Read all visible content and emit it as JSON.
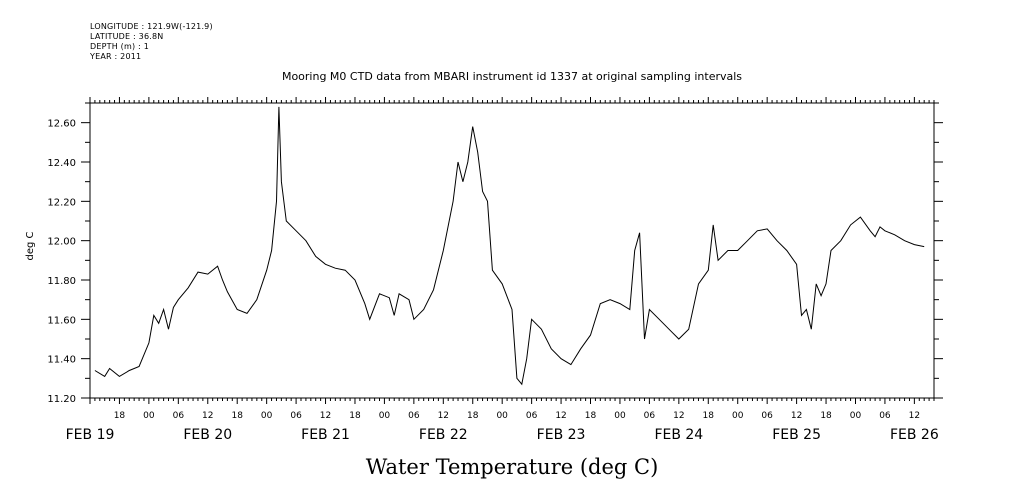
{
  "metadata": {
    "longitude": "LONGITUDE : 121.9W(-121.9)",
    "latitude": "LATITUDE : 36.8N",
    "depth": "DEPTH (m) : 1",
    "year": "YEAR : 2011"
  },
  "chart_data": {
    "type": "line",
    "title": "Mooring M0 CTD data from MBARI instrument id 1337 at original sampling intervals",
    "xlabel": "Water Temperature (deg C)",
    "ylabel": "deg C",
    "ylim": [
      11.2,
      12.7
    ],
    "xlim": [
      "2011-02-19T12:00",
      "2011-02-26T16:00"
    ],
    "y_ticks": [
      "11.20",
      "11.40",
      "11.60",
      "11.80",
      "12.00",
      "12.20",
      "12.40",
      "12.60"
    ],
    "hour_ticks": [
      {
        "t": "2011-02-19T18:00",
        "label": "18"
      },
      {
        "t": "2011-02-20T00:00",
        "label": "00"
      },
      {
        "t": "2011-02-20T06:00",
        "label": "06"
      },
      {
        "t": "2011-02-20T12:00",
        "label": "12"
      },
      {
        "t": "2011-02-20T18:00",
        "label": "18"
      },
      {
        "t": "2011-02-21T00:00",
        "label": "00"
      },
      {
        "t": "2011-02-21T06:00",
        "label": "06"
      },
      {
        "t": "2011-02-21T12:00",
        "label": "12"
      },
      {
        "t": "2011-02-21T18:00",
        "label": "18"
      },
      {
        "t": "2011-02-22T00:00",
        "label": "00"
      },
      {
        "t": "2011-02-22T06:00",
        "label": "06"
      },
      {
        "t": "2011-02-22T12:00",
        "label": "12"
      },
      {
        "t": "2011-02-22T18:00",
        "label": "18"
      },
      {
        "t": "2011-02-23T00:00",
        "label": "00"
      },
      {
        "t": "2011-02-23T06:00",
        "label": "06"
      },
      {
        "t": "2011-02-23T12:00",
        "label": "12"
      },
      {
        "t": "2011-02-23T18:00",
        "label": "18"
      },
      {
        "t": "2011-02-24T00:00",
        "label": "00"
      },
      {
        "t": "2011-02-24T06:00",
        "label": "06"
      },
      {
        "t": "2011-02-24T12:00",
        "label": "12"
      },
      {
        "t": "2011-02-24T18:00",
        "label": "18"
      },
      {
        "t": "2011-02-25T00:00",
        "label": "00"
      },
      {
        "t": "2011-02-25T06:00",
        "label": "06"
      },
      {
        "t": "2011-02-25T12:00",
        "label": "12"
      },
      {
        "t": "2011-02-25T18:00",
        "label": "18"
      },
      {
        "t": "2011-02-26T00:00",
        "label": "00"
      },
      {
        "t": "2011-02-26T06:00",
        "label": "06"
      },
      {
        "t": "2011-02-26T12:00",
        "label": "12"
      }
    ],
    "date_labels": [
      {
        "t": "2011-02-19T12:00",
        "label": "FEB 19"
      },
      {
        "t": "2011-02-20T12:00",
        "label": "FEB 20"
      },
      {
        "t": "2011-02-21T12:00",
        "label": "FEB 21"
      },
      {
        "t": "2011-02-22T12:00",
        "label": "FEB 22"
      },
      {
        "t": "2011-02-23T12:00",
        "label": "FEB 23"
      },
      {
        "t": "2011-02-24T12:00",
        "label": "FEB 24"
      },
      {
        "t": "2011-02-25T12:00",
        "label": "FEB 25"
      },
      {
        "t": "2011-02-26T12:00",
        "label": "FEB 26"
      }
    ],
    "series": [
      {
        "points": [
          [
            "2011-02-19T13:00",
            11.34
          ],
          [
            "2011-02-19T15:00",
            11.31
          ],
          [
            "2011-02-19T16:00",
            11.35
          ],
          [
            "2011-02-19T18:00",
            11.31
          ],
          [
            "2011-02-19T20:00",
            11.34
          ],
          [
            "2011-02-19T22:00",
            11.36
          ],
          [
            "2011-02-20T00:00",
            11.48
          ],
          [
            "2011-02-20T01:00",
            11.62
          ],
          [
            "2011-02-20T02:00",
            11.58
          ],
          [
            "2011-02-20T03:00",
            11.65
          ],
          [
            "2011-02-20T04:00",
            11.55
          ],
          [
            "2011-02-20T05:00",
            11.66
          ],
          [
            "2011-02-20T06:00",
            11.7
          ],
          [
            "2011-02-20T08:00",
            11.76
          ],
          [
            "2011-02-20T10:00",
            11.84
          ],
          [
            "2011-02-20T12:00",
            11.83
          ],
          [
            "2011-02-20T14:00",
            11.87
          ],
          [
            "2011-02-20T15:00",
            11.8
          ],
          [
            "2011-02-20T16:00",
            11.74
          ],
          [
            "2011-02-20T18:00",
            11.65
          ],
          [
            "2011-02-20T20:00",
            11.63
          ],
          [
            "2011-02-20T22:00",
            11.7
          ],
          [
            "2011-02-21T00:00",
            11.85
          ],
          [
            "2011-02-21T01:00",
            11.95
          ],
          [
            "2011-02-21T02:00",
            12.2
          ],
          [
            "2011-02-21T02:30",
            12.68
          ],
          [
            "2011-02-21T03:00",
            12.3
          ],
          [
            "2011-02-21T04:00",
            12.1
          ],
          [
            "2011-02-21T06:00",
            12.05
          ],
          [
            "2011-02-21T08:00",
            12.0
          ],
          [
            "2011-02-21T10:00",
            11.92
          ],
          [
            "2011-02-21T12:00",
            11.88
          ],
          [
            "2011-02-21T14:00",
            11.86
          ],
          [
            "2011-02-21T16:00",
            11.85
          ],
          [
            "2011-02-21T18:00",
            11.8
          ],
          [
            "2011-02-21T20:00",
            11.68
          ],
          [
            "2011-02-21T21:00",
            11.6
          ],
          [
            "2011-02-21T23:00",
            11.73
          ],
          [
            "2011-02-22T01:00",
            11.71
          ],
          [
            "2011-02-22T02:00",
            11.62
          ],
          [
            "2011-02-22T03:00",
            11.73
          ],
          [
            "2011-02-22T05:00",
            11.7
          ],
          [
            "2011-02-22T06:00",
            11.6
          ],
          [
            "2011-02-22T08:00",
            11.65
          ],
          [
            "2011-02-22T10:00",
            11.75
          ],
          [
            "2011-02-22T12:00",
            11.95
          ],
          [
            "2011-02-22T14:00",
            12.2
          ],
          [
            "2011-02-22T15:00",
            12.4
          ],
          [
            "2011-02-22T16:00",
            12.3
          ],
          [
            "2011-02-22T17:00",
            12.4
          ],
          [
            "2011-02-22T18:00",
            12.58
          ],
          [
            "2011-02-22T19:00",
            12.45
          ],
          [
            "2011-02-22T20:00",
            12.25
          ],
          [
            "2011-02-22T21:00",
            12.2
          ],
          [
            "2011-02-22T22:00",
            11.85
          ],
          [
            "2011-02-23T00:00",
            11.78
          ],
          [
            "2011-02-23T02:00",
            11.65
          ],
          [
            "2011-02-23T03:00",
            11.3
          ],
          [
            "2011-02-23T04:00",
            11.27
          ],
          [
            "2011-02-23T05:00",
            11.4
          ],
          [
            "2011-02-23T06:00",
            11.6
          ],
          [
            "2011-02-23T08:00",
            11.55
          ],
          [
            "2011-02-23T10:00",
            11.45
          ],
          [
            "2011-02-23T12:00",
            11.4
          ],
          [
            "2011-02-23T14:00",
            11.37
          ],
          [
            "2011-02-23T16:00",
            11.45
          ],
          [
            "2011-02-23T18:00",
            11.52
          ],
          [
            "2011-02-23T20:00",
            11.68
          ],
          [
            "2011-02-23T22:00",
            11.7
          ],
          [
            "2011-02-24T00:00",
            11.68
          ],
          [
            "2011-02-24T02:00",
            11.65
          ],
          [
            "2011-02-24T03:00",
            11.95
          ],
          [
            "2011-02-24T04:00",
            12.04
          ],
          [
            "2011-02-24T05:00",
            11.5
          ],
          [
            "2011-02-24T06:00",
            11.65
          ],
          [
            "2011-02-24T08:00",
            11.6
          ],
          [
            "2011-02-24T10:00",
            11.55
          ],
          [
            "2011-02-24T12:00",
            11.5
          ],
          [
            "2011-02-24T14:00",
            11.55
          ],
          [
            "2011-02-24T16:00",
            11.78
          ],
          [
            "2011-02-24T18:00",
            11.85
          ],
          [
            "2011-02-24T19:00",
            12.08
          ],
          [
            "2011-02-24T20:00",
            11.9
          ],
          [
            "2011-02-24T22:00",
            11.95
          ],
          [
            "2011-02-25T00:00",
            11.95
          ],
          [
            "2011-02-25T02:00",
            12.0
          ],
          [
            "2011-02-25T04:00",
            12.05
          ],
          [
            "2011-02-25T06:00",
            12.06
          ],
          [
            "2011-02-25T08:00",
            12.0
          ],
          [
            "2011-02-25T10:00",
            11.95
          ],
          [
            "2011-02-25T12:00",
            11.88
          ],
          [
            "2011-02-25T13:00",
            11.62
          ],
          [
            "2011-02-25T14:00",
            11.65
          ],
          [
            "2011-02-25T15:00",
            11.55
          ],
          [
            "2011-02-25T16:00",
            11.78
          ],
          [
            "2011-02-25T17:00",
            11.72
          ],
          [
            "2011-02-25T18:00",
            11.78
          ],
          [
            "2011-02-25T19:00",
            11.95
          ],
          [
            "2011-02-25T21:00",
            12.0
          ],
          [
            "2011-02-25T23:00",
            12.08
          ],
          [
            "2011-02-26T01:00",
            12.12
          ],
          [
            "2011-02-26T03:00",
            12.05
          ],
          [
            "2011-02-26T04:00",
            12.02
          ],
          [
            "2011-02-26T05:00",
            12.07
          ],
          [
            "2011-02-26T06:00",
            12.05
          ],
          [
            "2011-02-26T08:00",
            12.03
          ],
          [
            "2011-02-26T10:00",
            12.0
          ],
          [
            "2011-02-26T12:00",
            11.98
          ],
          [
            "2011-02-26T14:00",
            11.97
          ]
        ]
      }
    ]
  }
}
